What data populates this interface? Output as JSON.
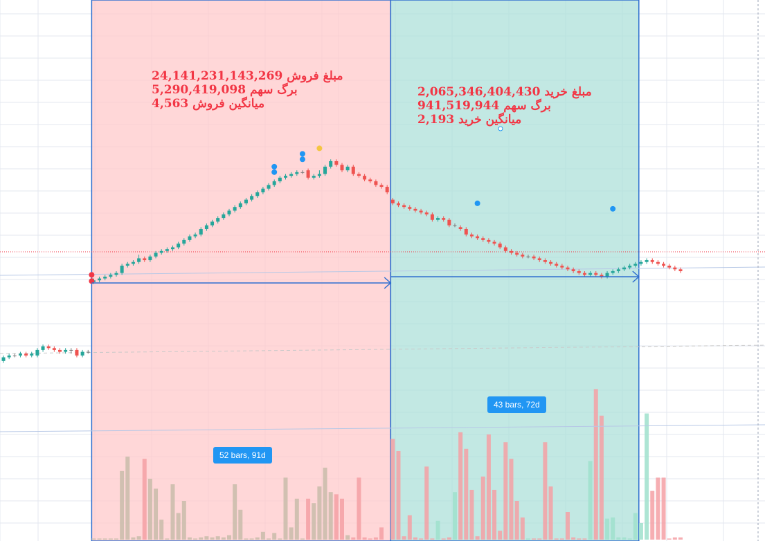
{
  "colors": {
    "sell_zone": "#ffc9cb",
    "buy_zone": "#aee0d9",
    "zone_border": "#2f6fcf",
    "up_candle": "#26a69a",
    "down_candle": "#ef5350",
    "doji": "#7a7a7a",
    "up_volume": "#9fe0cc",
    "down_volume": "#f4a0a4",
    "neutral_volume": "#c9bcaa",
    "dot_red": "#f23645",
    "dot_blue": "#2196f3",
    "dot_yellow": "#f5c542",
    "text_red": "#f23645",
    "badge_bg": "#2196f3"
  },
  "sell_box": {
    "amount_line": "24,141,231,143,269 مبلغ فروش",
    "shares_line": "5,290,419,098 برگ سهم",
    "avg_line": "میانگین فروش 4,563",
    "range_label": "52 bars, 91d"
  },
  "buy_box": {
    "amount_line": "2,065,346,404,430 مبلغ خرید",
    "shares_line": "941,519,944 برگ سهم",
    "avg_line": "میانگین خرید 2,193",
    "range_label": "43 bars, 72d"
  },
  "chart_data": {
    "type": "candlestick",
    "price_axis": {
      "min": 0,
      "max": 100,
      "unit": "relative",
      "note_units": "relative price level (no axis labels printed)"
    },
    "candles": [
      {
        "i": 0,
        "o": 14,
        "c": 15,
        "h": 15.5,
        "l": 13.5
      },
      {
        "i": 1,
        "o": 15,
        "c": 15.5,
        "h": 16,
        "l": 14.5
      },
      {
        "i": 2,
        "o": 15.5,
        "c": 15.5,
        "h": 16,
        "l": 15
      },
      {
        "i": 3,
        "o": 15.5,
        "c": 16,
        "h": 16.5,
        "l": 15
      },
      {
        "i": 4,
        "o": 16,
        "c": 15.5,
        "h": 16.5,
        "l": 15
      },
      {
        "i": 5,
        "o": 15.5,
        "c": 16,
        "h": 16.5,
        "l": 15
      },
      {
        "i": 6,
        "o": 15.5,
        "c": 17,
        "h": 17.5,
        "l": 15
      },
      {
        "i": 7,
        "o": 17,
        "c": 18,
        "h": 18.5,
        "l": 16.5
      },
      {
        "i": 8,
        "o": 18,
        "c": 17.5,
        "h": 18.5,
        "l": 17
      },
      {
        "i": 9,
        "o": 17.5,
        "c": 17,
        "h": 18,
        "l": 16.5
      },
      {
        "i": 10,
        "o": 17,
        "c": 16.5,
        "h": 17.5,
        "l": 16
      },
      {
        "i": 11,
        "o": 16.5,
        "c": 17,
        "h": 17.5,
        "l": 16
      },
      {
        "i": 12,
        "o": 17,
        "c": 17,
        "h": 17.5,
        "l": 16
      },
      {
        "i": 13,
        "o": 17,
        "c": 15.5,
        "h": 17.5,
        "l": 15
      },
      {
        "i": 14,
        "o": 15.5,
        "c": 16.5,
        "h": 17,
        "l": 15
      },
      {
        "i": 15,
        "o": 16.5,
        "c": 16.5,
        "h": 17,
        "l": 16
      },
      {
        "i": 16,
        "o": 35.5,
        "c": 36,
        "h": 36.5,
        "l": 35
      },
      {
        "i": 17,
        "o": 36,
        "c": 36.5,
        "h": 37,
        "l": 35.5
      },
      {
        "i": 18,
        "o": 36.5,
        "c": 37,
        "h": 37.5,
        "l": 36
      },
      {
        "i": 19,
        "o": 37,
        "c": 37.5,
        "h": 38,
        "l": 36.5
      },
      {
        "i": 20,
        "o": 37.5,
        "c": 38,
        "h": 38.5,
        "l": 37
      },
      {
        "i": 21,
        "o": 38,
        "c": 40,
        "h": 40.5,
        "l": 37.5
      },
      {
        "i": 22,
        "o": 40,
        "c": 40.5,
        "h": 41,
        "l": 39.5
      },
      {
        "i": 23,
        "o": 40.5,
        "c": 41,
        "h": 41.5,
        "l": 40
      },
      {
        "i": 24,
        "o": 41,
        "c": 42,
        "h": 43,
        "l": 40.5
      },
      {
        "i": 25,
        "o": 42,
        "c": 41.5,
        "h": 42.5,
        "l": 41
      },
      {
        "i": 26,
        "o": 41.5,
        "c": 42.5,
        "h": 43,
        "l": 41
      },
      {
        "i": 27,
        "o": 42.5,
        "c": 43.5,
        "h": 44,
        "l": 42
      },
      {
        "i": 28,
        "o": 43.5,
        "c": 44,
        "h": 44.5,
        "l": 43
      },
      {
        "i": 29,
        "o": 44,
        "c": 44.5,
        "h": 45,
        "l": 43.5
      },
      {
        "i": 30,
        "o": 44.5,
        "c": 45,
        "h": 45.5,
        "l": 44
      },
      {
        "i": 31,
        "o": 45,
        "c": 46,
        "h": 46.5,
        "l": 44.5
      },
      {
        "i": 32,
        "o": 46,
        "c": 47,
        "h": 47.5,
        "l": 45.5
      },
      {
        "i": 33,
        "o": 47,
        "c": 48,
        "h": 48.5,
        "l": 46.5
      },
      {
        "i": 34,
        "o": 48,
        "c": 48.5,
        "h": 49,
        "l": 47.5
      },
      {
        "i": 35,
        "o": 48.5,
        "c": 50,
        "h": 50.5,
        "l": 48
      },
      {
        "i": 36,
        "o": 50,
        "c": 51,
        "h": 51.5,
        "l": 49.5
      },
      {
        "i": 37,
        "o": 51,
        "c": 52,
        "h": 52.5,
        "l": 50.5
      },
      {
        "i": 38,
        "o": 52,
        "c": 53,
        "h": 53.5,
        "l": 51.5
      },
      {
        "i": 39,
        "o": 53,
        "c": 54,
        "h": 54.5,
        "l": 52.5
      },
      {
        "i": 40,
        "o": 54,
        "c": 55,
        "h": 55.5,
        "l": 53.5
      },
      {
        "i": 41,
        "o": 55,
        "c": 56,
        "h": 56.5,
        "l": 54.5
      },
      {
        "i": 42,
        "o": 56,
        "c": 57,
        "h": 57.5,
        "l": 55.5
      },
      {
        "i": 43,
        "o": 57,
        "c": 58,
        "h": 58.5,
        "l": 56.5
      },
      {
        "i": 44,
        "o": 58,
        "c": 59,
        "h": 59.5,
        "l": 57.5
      },
      {
        "i": 45,
        "o": 59,
        "c": 60,
        "h": 60.5,
        "l": 58.5
      },
      {
        "i": 46,
        "o": 60,
        "c": 61,
        "h": 61.5,
        "l": 59.5
      },
      {
        "i": 47,
        "o": 61,
        "c": 62,
        "h": 62.5,
        "l": 60.5
      },
      {
        "i": 48,
        "o": 62,
        "c": 63,
        "h": 63.5,
        "l": 61.5
      },
      {
        "i": 49,
        "o": 63,
        "c": 64,
        "h": 64.5,
        "l": 62.5
      },
      {
        "i": 50,
        "o": 64,
        "c": 64.5,
        "h": 65,
        "l": 63.5
      },
      {
        "i": 51,
        "o": 64.5,
        "c": 65,
        "h": 65.5,
        "l": 64
      },
      {
        "i": 52,
        "o": 65,
        "c": 65.5,
        "h": 66,
        "l": 64.5
      },
      {
        "i": 53,
        "o": 65.5,
        "c": 65.5,
        "h": 66,
        "l": 65
      },
      {
        "i": 54,
        "o": 66,
        "c": 64,
        "h": 66.5,
        "l": 63.5
      },
      {
        "i": 55,
        "o": 64,
        "c": 64.5,
        "h": 65,
        "l": 63.5
      },
      {
        "i": 56,
        "o": 64.5,
        "c": 65,
        "h": 66,
        "l": 64
      },
      {
        "i": 57,
        "o": 65,
        "c": 67,
        "h": 67.5,
        "l": 64.5
      },
      {
        "i": 58,
        "o": 67,
        "c": 68.5,
        "h": 69,
        "l": 66.5
      },
      {
        "i": 59,
        "o": 68.5,
        "c": 67.5,
        "h": 69,
        "l": 67
      },
      {
        "i": 60,
        "o": 67.5,
        "c": 66,
        "h": 68,
        "l": 65.5
      },
      {
        "i": 61,
        "o": 66,
        "c": 67,
        "h": 67.5,
        "l": 65.5
      },
      {
        "i": 62,
        "o": 67,
        "c": 65,
        "h": 67.5,
        "l": 64.5
      },
      {
        "i": 63,
        "o": 65,
        "c": 64.5,
        "h": 65.5,
        "l": 64
      },
      {
        "i": 64,
        "o": 64.5,
        "c": 63.5,
        "h": 65,
        "l": 63
      },
      {
        "i": 65,
        "o": 63.5,
        "c": 63,
        "h": 64,
        "l": 62.5
      },
      {
        "i": 66,
        "o": 63,
        "c": 62,
        "h": 63.5,
        "l": 61.5
      },
      {
        "i": 67,
        "o": 62,
        "c": 61.5,
        "h": 62.5,
        "l": 61
      },
      {
        "i": 68,
        "o": 61.5,
        "c": 60,
        "h": 62,
        "l": 59.5
      },
      {
        "i": 69,
        "o": 58,
        "c": 57,
        "h": 58.5,
        "l": 56.5
      },
      {
        "i": 70,
        "o": 57,
        "c": 56.5,
        "h": 57.5,
        "l": 56
      },
      {
        "i": 71,
        "o": 56.5,
        "c": 56,
        "h": 57,
        "l": 55.5
      },
      {
        "i": 72,
        "o": 56,
        "c": 55.5,
        "h": 56.5,
        "l": 55
      },
      {
        "i": 73,
        "o": 55.5,
        "c": 55,
        "h": 56,
        "l": 54.5
      },
      {
        "i": 74,
        "o": 55,
        "c": 54.5,
        "h": 55.5,
        "l": 54
      },
      {
        "i": 75,
        "o": 54.5,
        "c": 54,
        "h": 55,
        "l": 53.5
      },
      {
        "i": 76,
        "o": 54,
        "c": 52.5,
        "h": 54.5,
        "l": 52
      },
      {
        "i": 77,
        "o": 52.5,
        "c": 53,
        "h": 53.5,
        "l": 52
      },
      {
        "i": 78,
        "o": 53,
        "c": 52.5,
        "h": 53.5,
        "l": 52
      },
      {
        "i": 79,
        "o": 52.5,
        "c": 51,
        "h": 53,
        "l": 50.5
      },
      {
        "i": 80,
        "o": 51,
        "c": 51,
        "h": 51.5,
        "l": 50.5
      },
      {
        "i": 81,
        "o": 50.5,
        "c": 50,
        "h": 51,
        "l": 49.5
      },
      {
        "i": 82,
        "o": 50,
        "c": 48.5,
        "h": 50.5,
        "l": 48
      },
      {
        "i": 83,
        "o": 48.5,
        "c": 48,
        "h": 49,
        "l": 47.5
      },
      {
        "i": 84,
        "o": 48,
        "c": 47.5,
        "h": 48.5,
        "l": 47
      },
      {
        "i": 85,
        "o": 47.5,
        "c": 47,
        "h": 48,
        "l": 46.5
      },
      {
        "i": 86,
        "o": 47,
        "c": 46.5,
        "h": 47.5,
        "l": 46
      },
      {
        "i": 87,
        "o": 46.5,
        "c": 46,
        "h": 47,
        "l": 45.5
      },
      {
        "i": 88,
        "o": 46,
        "c": 45,
        "h": 46.5,
        "l": 44.5
      },
      {
        "i": 89,
        "o": 45,
        "c": 44,
        "h": 45.5,
        "l": 43.5
      },
      {
        "i": 90,
        "o": 44,
        "c": 43.5,
        "h": 44.5,
        "l": 43
      },
      {
        "i": 91,
        "o": 43.5,
        "c": 43,
        "h": 44,
        "l": 42.5
      },
      {
        "i": 92,
        "o": 43,
        "c": 42.5,
        "h": 43.5,
        "l": 42
      },
      {
        "i": 93,
        "o": 42.5,
        "c": 42.5,
        "h": 43,
        "l": 42
      },
      {
        "i": 94,
        "o": 42.5,
        "c": 42,
        "h": 43,
        "l": 41.5
      },
      {
        "i": 95,
        "o": 42,
        "c": 41.5,
        "h": 42.5,
        "l": 41
      },
      {
        "i": 96,
        "o": 41.5,
        "c": 41,
        "h": 42,
        "l": 40.5
      },
      {
        "i": 97,
        "o": 41,
        "c": 40.5,
        "h": 41.5,
        "l": 40
      },
      {
        "i": 98,
        "o": 40.5,
        "c": 40,
        "h": 41,
        "l": 39.5
      },
      {
        "i": 99,
        "o": 40,
        "c": 39.5,
        "h": 40.5,
        "l": 39
      },
      {
        "i": 100,
        "o": 39.5,
        "c": 39,
        "h": 40,
        "l": 38.5
      },
      {
        "i": 101,
        "o": 39,
        "c": 38.5,
        "h": 39.5,
        "l": 38
      },
      {
        "i": 102,
        "o": 38.5,
        "c": 38,
        "h": 39,
        "l": 37.5
      },
      {
        "i": 103,
        "o": 38,
        "c": 37.5,
        "h": 38.5,
        "l": 37
      },
      {
        "i": 104,
        "o": 37.5,
        "c": 38,
        "h": 38.5,
        "l": 37
      },
      {
        "i": 105,
        "o": 38,
        "c": 37.5,
        "h": 38.5,
        "l": 37
      },
      {
        "i": 106,
        "o": 37.5,
        "c": 37,
        "h": 38,
        "l": 36.5
      },
      {
        "i": 107,
        "o": 37,
        "c": 38,
        "h": 38.5,
        "l": 36.5
      },
      {
        "i": 108,
        "o": 38,
        "c": 38.5,
        "h": 39,
        "l": 37.5
      },
      {
        "i": 109,
        "o": 38.5,
        "c": 39,
        "h": 39.5,
        "l": 38
      },
      {
        "i": 110,
        "o": 39,
        "c": 39.5,
        "h": 40,
        "l": 38.5
      },
      {
        "i": 111,
        "o": 39.5,
        "c": 40,
        "h": 40.5,
        "l": 39
      },
      {
        "i": 112,
        "o": 40,
        "c": 40.5,
        "h": 41,
        "l": 39.5
      },
      {
        "i": 113,
        "o": 40.5,
        "c": 41,
        "h": 41.5,
        "l": 40
      },
      {
        "i": 114,
        "o": 41,
        "c": 41.5,
        "h": 42,
        "l": 40.5
      },
      {
        "i": 115,
        "o": 41.5,
        "c": 41,
        "h": 42,
        "l": 40.5
      },
      {
        "i": 116,
        "o": 41,
        "c": 40.5,
        "h": 41.5,
        "l": 40
      },
      {
        "i": 117,
        "o": 40.5,
        "c": 40,
        "h": 41,
        "l": 39.5
      },
      {
        "i": 118,
        "o": 40,
        "c": 39.5,
        "h": 40.5,
        "l": 39
      },
      {
        "i": 119,
        "o": 39.5,
        "c": 39,
        "h": 40,
        "l": 38.5
      },
      {
        "i": 120,
        "o": 39,
        "c": 38.5,
        "h": 39.5,
        "l": 38
      }
    ],
    "volumes": [
      {
        "i": 0,
        "v": 0
      },
      {
        "i": 16,
        "v": 1
      },
      {
        "i": 17,
        "v": 1
      },
      {
        "i": 18,
        "v": 1
      },
      {
        "i": 19,
        "v": 1
      },
      {
        "i": 20,
        "v": 1
      },
      {
        "i": 21,
        "v": 62
      },
      {
        "i": 22,
        "v": 75
      },
      {
        "i": 23,
        "v": 2
      },
      {
        "i": 24,
        "v": 3
      },
      {
        "i": 25,
        "v": 73
      },
      {
        "i": 26,
        "v": 55
      },
      {
        "i": 27,
        "v": 46
      },
      {
        "i": 28,
        "v": 18
      },
      {
        "i": 29,
        "v": 1
      },
      {
        "i": 30,
        "v": 50
      },
      {
        "i": 31,
        "v": 24
      },
      {
        "i": 32,
        "v": 35
      },
      {
        "i": 33,
        "v": 2
      },
      {
        "i": 34,
        "v": 1
      },
      {
        "i": 35,
        "v": 2
      },
      {
        "i": 36,
        "v": 3
      },
      {
        "i": 37,
        "v": 2
      },
      {
        "i": 38,
        "v": 3
      },
      {
        "i": 39,
        "v": 2
      },
      {
        "i": 40,
        "v": 4
      },
      {
        "i": 41,
        "v": 50
      },
      {
        "i": 42,
        "v": 27
      },
      {
        "i": 43,
        "v": 1
      },
      {
        "i": 44,
        "v": 1
      },
      {
        "i": 45,
        "v": 2
      },
      {
        "i": 46,
        "v": 7
      },
      {
        "i": 47,
        "v": 1
      },
      {
        "i": 48,
        "v": 6
      },
      {
        "i": 49,
        "v": 1
      },
      {
        "i": 50,
        "v": 56
      },
      {
        "i": 51,
        "v": 11
      },
      {
        "i": 52,
        "v": 37
      },
      {
        "i": 53,
        "v": 1
      },
      {
        "i": 54,
        "v": 37
      },
      {
        "i": 55,
        "v": 33
      },
      {
        "i": 56,
        "v": 48
      },
      {
        "i": 57,
        "v": 65
      },
      {
        "i": 58,
        "v": 43
      },
      {
        "i": 59,
        "v": 41
      },
      {
        "i": 60,
        "v": 37
      },
      {
        "i": 61,
        "v": 4
      },
      {
        "i": 62,
        "v": 2
      },
      {
        "i": 63,
        "v": 56
      },
      {
        "i": 64,
        "v": 2
      },
      {
        "i": 65,
        "v": 1
      },
      {
        "i": 66,
        "v": 2
      },
      {
        "i": 67,
        "v": 11
      },
      {
        "i": 69,
        "v": 91
      },
      {
        "i": 70,
        "v": 80
      },
      {
        "i": 71,
        "v": 3
      },
      {
        "i": 72,
        "v": 22
      },
      {
        "i": 73,
        "v": 2
      },
      {
        "i": 74,
        "v": 1
      },
      {
        "i": 75,
        "v": 66
      },
      {
        "i": 76,
        "v": 1
      },
      {
        "i": 77,
        "v": 17
      },
      {
        "i": 78,
        "v": 1
      },
      {
        "i": 79,
        "v": 2
      },
      {
        "i": 80,
        "v": 43
      },
      {
        "i": 81,
        "v": 97
      },
      {
        "i": 82,
        "v": 82
      },
      {
        "i": 83,
        "v": 45
      },
      {
        "i": 84,
        "v": 3
      },
      {
        "i": 85,
        "v": 57
      },
      {
        "i": 86,
        "v": 95
      },
      {
        "i": 87,
        "v": 45
      },
      {
        "i": 88,
        "v": 8
      },
      {
        "i": 89,
        "v": 88
      },
      {
        "i": 90,
        "v": 73
      },
      {
        "i": 91,
        "v": 35
      },
      {
        "i": 92,
        "v": 20
      },
      {
        "i": 93,
        "v": 1
      },
      {
        "i": 94,
        "v": 1
      },
      {
        "i": 95,
        "v": 1
      },
      {
        "i": 96,
        "v": 88
      },
      {
        "i": 97,
        "v": 48
      },
      {
        "i": 98,
        "v": 1
      },
      {
        "i": 99,
        "v": 1
      },
      {
        "i": 100,
        "v": 25
      },
      {
        "i": 101,
        "v": 2
      },
      {
        "i": 102,
        "v": 1
      },
      {
        "i": 103,
        "v": 1
      },
      {
        "i": 104,
        "v": 71
      },
      {
        "i": 105,
        "v": 136
      },
      {
        "i": 106,
        "v": 112
      },
      {
        "i": 107,
        "v": 19
      },
      {
        "i": 108,
        "v": 20
      },
      {
        "i": 109,
        "v": 2
      },
      {
        "i": 110,
        "v": 2
      },
      {
        "i": 111,
        "v": 1
      },
      {
        "i": 112,
        "v": 24
      },
      {
        "i": 113,
        "v": 15
      },
      {
        "i": 114,
        "v": 114
      },
      {
        "i": 115,
        "v": 44
      },
      {
        "i": 116,
        "v": 56
      },
      {
        "i": 117,
        "v": 56
      },
      {
        "i": 118,
        "v": 1
      },
      {
        "i": 119,
        "v": 2
      },
      {
        "i": 120,
        "v": 2
      }
    ],
    "signal_dots": [
      {
        "i": 16,
        "price": 37.5,
        "color": "red"
      },
      {
        "i": 16,
        "price": 35.8,
        "color": "red"
      },
      {
        "i": 48,
        "price": 67,
        "color": "blue"
      },
      {
        "i": 48,
        "price": 65.5,
        "color": "blue"
      },
      {
        "i": 53,
        "price": 70.5,
        "color": "blue"
      },
      {
        "i": 53,
        "price": 69,
        "color": "blue"
      },
      {
        "i": 56,
        "price": 72,
        "color": "yellow"
      },
      {
        "i": 84,
        "price": 57,
        "color": "blue"
      },
      {
        "i": 108,
        "price": 55.5,
        "color": "blue"
      }
    ],
    "ranges": [
      {
        "from_index": 16,
        "to_index": 68,
        "zone": "sell"
      },
      {
        "from_index": 69,
        "to_index": 112,
        "zone": "buy"
      }
    ]
  }
}
